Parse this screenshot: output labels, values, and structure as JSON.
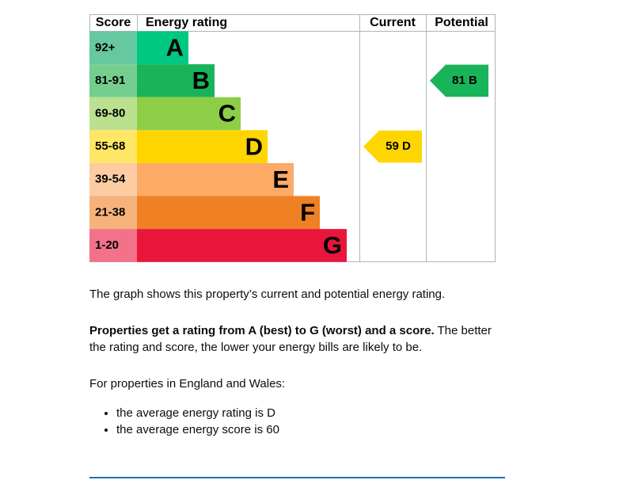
{
  "chart": {
    "headers": {
      "score": "Score",
      "rating": "Energy rating",
      "current": "Current",
      "potential": "Potential"
    },
    "bands": [
      {
        "range": "92+",
        "letter": "A",
        "color": "#00c781",
        "score_color": "#66c8a0"
      },
      {
        "range": "81-91",
        "letter": "B",
        "color": "#19b459",
        "score_color": "#75ce8f"
      },
      {
        "range": "69-80",
        "letter": "C",
        "color": "#8dce46",
        "score_color": "#bbe08f"
      },
      {
        "range": "55-68",
        "letter": "D",
        "color": "#ffd500",
        "score_color": "#ffe666"
      },
      {
        "range": "39-54",
        "letter": "E",
        "color": "#fcaa65",
        "score_color": "#fdcca3"
      },
      {
        "range": "21-38",
        "letter": "F",
        "color": "#ef8023",
        "score_color": "#f5b37b"
      },
      {
        "range": "1-20",
        "letter": "G",
        "color": "#e9153b",
        "score_color": "#f27389"
      }
    ],
    "current": {
      "score": 59,
      "rating": "D"
    },
    "potential": {
      "score": 81,
      "rating": "B"
    }
  },
  "text": {
    "intro": "The graph shows this property’s current and potential energy rating.",
    "bold": "Properties get a rating from A (best) to G (worst) and a score.",
    "rest": " The better the rating and score, the lower your energy bills are likely to be.",
    "england": "For properties in England and Wales:",
    "bullets": [
      "the average energy rating is D",
      "the average energy score is 60"
    ]
  }
}
